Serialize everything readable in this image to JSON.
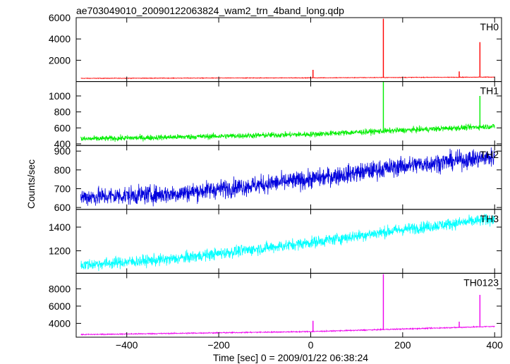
{
  "chart_data": {
    "type": "line",
    "title": "ae703049010_20090122063824_wam2_trn_4band_long.qdp",
    "xlabel": "Time [sec] 0 = 2009/01/22 06:38:24",
    "ylabel": "Counts/sec",
    "xlim": [
      -510,
      415
    ],
    "x_ticks": [
      -400,
      -200,
      0,
      200,
      400
    ],
    "x_tick_labels": [
      "−400",
      "−200",
      "0",
      "200",
      "400"
    ],
    "panels": [
      {
        "name": "TH0",
        "color": "#ff0000",
        "ylim": [
          0,
          6000
        ],
        "y_ticks": [
          2000,
          4000,
          6000
        ],
        "y_tick_labels": [
          "2000",
          "4000",
          "6000"
        ],
        "baseline": {
          "x": [
            -500,
            0,
            400
          ],
          "y": [
            300,
            350,
            420
          ]
        },
        "noise": 20,
        "spikes": [
          {
            "x": 5,
            "y": 1100
          },
          {
            "x": 158,
            "y": 5900
          },
          {
            "x": 323,
            "y": 950
          },
          {
            "x": 368,
            "y": 3700
          }
        ]
      },
      {
        "name": "TH1",
        "color": "#00ee00",
        "ylim": [
          380,
          1180
        ],
        "y_ticks": [
          400,
          600,
          800,
          1000
        ],
        "y_tick_labels": [
          "400",
          "600",
          "800",
          "1000"
        ],
        "baseline": {
          "x": [
            -500,
            0,
            400
          ],
          "y": [
            460,
            520,
            620
          ]
        },
        "noise": 25,
        "spikes": [
          {
            "x": 158,
            "y": 1180
          },
          {
            "x": 368,
            "y": 1000
          }
        ]
      },
      {
        "name": "TH2",
        "color": "#0000dd",
        "ylim": [
          590,
          930
        ],
        "y_ticks": [
          600,
          700,
          800,
          900
        ],
        "y_tick_labels": [
          "600",
          "700",
          "800",
          "900"
        ],
        "baseline": {
          "x": [
            -500,
            -300,
            0,
            200,
            400
          ],
          "y": [
            655,
            672,
            750,
            820,
            870
          ]
        },
        "noise": 35,
        "spikes": []
      },
      {
        "name": "TH3",
        "color": "#00ffff",
        "ylim": [
          1010,
          1550
        ],
        "y_ticks": [
          1200,
          1400
        ],
        "y_tick_labels": [
          "1200",
          "1400"
        ],
        "baseline": {
          "x": [
            -500,
            -300,
            0,
            200,
            400
          ],
          "y": [
            1080,
            1130,
            1270,
            1380,
            1470
          ]
        },
        "noise": 35,
        "spikes": []
      },
      {
        "name": "TH0123",
        "color": "#ee00ee",
        "ylim": [
          2400,
          9800
        ],
        "y_ticks": [
          4000,
          6000,
          8000
        ],
        "y_tick_labels": [
          "4000",
          "6000",
          "8000"
        ],
        "baseline": {
          "x": [
            -500,
            0,
            400
          ],
          "y": [
            2700,
            3050,
            3650
          ]
        },
        "noise": 45,
        "spikes": [
          {
            "x": 5,
            "y": 4300
          },
          {
            "x": 158,
            "y": 9700
          },
          {
            "x": 323,
            "y": 4200
          },
          {
            "x": 368,
            "y": 7300
          }
        ]
      }
    ]
  }
}
